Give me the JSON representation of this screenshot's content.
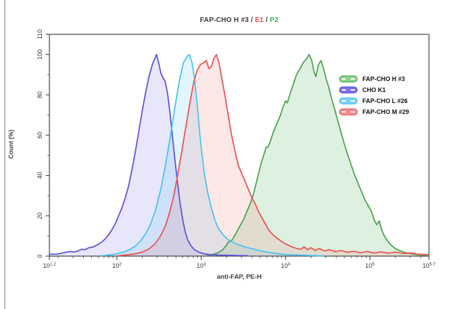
{
  "title": {
    "parts": [
      {
        "text": "FAP-CHO H #3 / ",
        "color": "#3a3a3a"
      },
      {
        "text": "E1",
        "color": "#e84b4b"
      },
      {
        "text": " / ",
        "color": "#3a3a3a"
      },
      {
        "text": "P2",
        "color": "#3bae5a"
      }
    ]
  },
  "axes": {
    "x": {
      "label": "anti-FAP, PE-H",
      "scale": "log10",
      "min_exp": 1.2,
      "max_exp": 5.7,
      "major_ticks": [
        {
          "exp": 1.2,
          "label": "1.2"
        },
        {
          "exp": 2,
          "label": "2"
        },
        {
          "exp": 3,
          "label": "3"
        },
        {
          "exp": 4,
          "label": "4"
        },
        {
          "exp": 5,
          "label": "5"
        },
        {
          "exp": 5.7,
          "label": "5.7"
        }
      ]
    },
    "y": {
      "label": "Count (%)",
      "min": 0,
      "max": 110,
      "major_ticks": [
        0,
        20,
        40,
        60,
        80,
        100,
        110
      ],
      "minor_ticks": [
        10,
        30,
        50,
        70,
        90
      ]
    }
  },
  "chart_data": {
    "type": "area",
    "subtype": "flow-cytometry-histogram-overlay",
    "title": "FAP-CHO H #3 / E1 / P2",
    "xlabel": "anti-FAP, PE-H",
    "ylabel": "Count (%)",
    "x_scale": "log10",
    "x_range_exp": [
      1.2,
      5.7
    ],
    "ylim": [
      0,
      110
    ],
    "grid": false,
    "legend_position": "right-inside",
    "series": [
      {
        "name": "FAP-CHO H #3",
        "stroke": "#4aa551",
        "fill": "rgba(106,190,114,0.22)",
        "swatch_fill": "#8fd08f",
        "points": [
          [
            3.06,
            0.2
          ],
          [
            3.13,
            0.7
          ],
          [
            3.19,
            1.5
          ],
          [
            3.25,
            3
          ],
          [
            3.3,
            5.5
          ],
          [
            3.33,
            7.5
          ],
          [
            3.35,
            7.2
          ],
          [
            3.38,
            9
          ],
          [
            3.42,
            12
          ],
          [
            3.46,
            15
          ],
          [
            3.5,
            18
          ],
          [
            3.53,
            21
          ],
          [
            3.56,
            24
          ],
          [
            3.59,
            27
          ],
          [
            3.62,
            31
          ],
          [
            3.65,
            36
          ],
          [
            3.68,
            41
          ],
          [
            3.71,
            46
          ],
          [
            3.74,
            50
          ],
          [
            3.77,
            54
          ],
          [
            3.79,
            54
          ],
          [
            3.82,
            57
          ],
          [
            3.85,
            61
          ],
          [
            3.88,
            64
          ],
          [
            3.91,
            67
          ],
          [
            3.94,
            70
          ],
          [
            3.97,
            74
          ],
          [
            4.0,
            77
          ],
          [
            4.02,
            76
          ],
          [
            4.05,
            80
          ],
          [
            4.09,
            85
          ],
          [
            4.13,
            90
          ],
          [
            4.17,
            93
          ],
          [
            4.21,
            96
          ],
          [
            4.25,
            98
          ],
          [
            4.28,
            100
          ],
          [
            4.31,
            97
          ],
          [
            4.34,
            91
          ],
          [
            4.36,
            89
          ],
          [
            4.39,
            95
          ],
          [
            4.42,
            97
          ],
          [
            4.45,
            93
          ],
          [
            4.48,
            88
          ],
          [
            4.51,
            84
          ],
          [
            4.54,
            79
          ],
          [
            4.58,
            73
          ],
          [
            4.62,
            67
          ],
          [
            4.66,
            61
          ],
          [
            4.7,
            55
          ],
          [
            4.74,
            50
          ],
          [
            4.78,
            45
          ],
          [
            4.82,
            40
          ],
          [
            4.86,
            36
          ],
          [
            4.9,
            32
          ],
          [
            4.94,
            28
          ],
          [
            4.98,
            25
          ],
          [
            5.02,
            22
          ],
          [
            5.05,
            18
          ],
          [
            5.08,
            15.5
          ],
          [
            5.11,
            17.5
          ],
          [
            5.14,
            13
          ],
          [
            5.17,
            10
          ],
          [
            5.21,
            7.5
          ],
          [
            5.25,
            5.5
          ],
          [
            5.3,
            3.8
          ],
          [
            5.36,
            2.6
          ],
          [
            5.42,
            1.8
          ],
          [
            5.49,
            1.2
          ],
          [
            5.56,
            0.8
          ],
          [
            5.63,
            0.5
          ],
          [
            5.7,
            0.3
          ]
        ]
      },
      {
        "name": "CHO K1",
        "stroke": "#5b55dd",
        "fill": "rgba(110,100,230,0.16)",
        "swatch_fill": "#7b70e8",
        "points": [
          [
            1.2,
            1
          ],
          [
            1.28,
            1
          ],
          [
            1.34,
            1.4
          ],
          [
            1.4,
            2
          ],
          [
            1.45,
            2.3
          ],
          [
            1.49,
            2
          ],
          [
            1.54,
            2.6
          ],
          [
            1.58,
            3.4
          ],
          [
            1.62,
            3.2
          ],
          [
            1.67,
            4.2
          ],
          [
            1.72,
            4.6
          ],
          [
            1.77,
            5.6
          ],
          [
            1.82,
            7
          ],
          [
            1.86,
            8.5
          ],
          [
            1.9,
            10.5
          ],
          [
            1.94,
            13
          ],
          [
            1.98,
            16
          ],
          [
            2.02,
            20
          ],
          [
            2.06,
            24
          ],
          [
            2.1,
            29
          ],
          [
            2.14,
            35
          ],
          [
            2.18,
            43
          ],
          [
            2.22,
            52
          ],
          [
            2.26,
            62
          ],
          [
            2.3,
            72
          ],
          [
            2.34,
            81
          ],
          [
            2.38,
            89
          ],
          [
            2.42,
            95
          ],
          [
            2.45,
            98
          ],
          [
            2.47,
            100
          ],
          [
            2.5,
            95
          ],
          [
            2.52,
            91
          ],
          [
            2.55,
            88
          ],
          [
            2.57,
            87
          ],
          [
            2.6,
            81
          ],
          [
            2.63,
            71
          ],
          [
            2.66,
            59
          ],
          [
            2.69,
            47
          ],
          [
            2.72,
            36
          ],
          [
            2.75,
            26
          ],
          [
            2.78,
            18
          ],
          [
            2.81,
            12
          ],
          [
            2.84,
            8
          ],
          [
            2.88,
            5
          ],
          [
            2.92,
            3.2
          ],
          [
            2.97,
            2
          ],
          [
            3.03,
            1.2
          ],
          [
            3.1,
            0.8
          ],
          [
            3.2,
            0.5
          ],
          [
            3.32,
            0.4
          ],
          [
            3.45,
            0.3
          ],
          [
            3.55,
            0.2
          ]
        ]
      },
      {
        "name": "FAP-CHO L #26",
        "stroke": "#49c3f2",
        "fill": "rgba(110,205,245,0.20)",
        "swatch_fill": "#79d2f5",
        "points": [
          [
            1.82,
            0.2
          ],
          [
            1.92,
            0.6
          ],
          [
            2.0,
            1.2
          ],
          [
            2.08,
            2
          ],
          [
            2.15,
            3.2
          ],
          [
            2.22,
            5
          ],
          [
            2.28,
            7.5
          ],
          [
            2.34,
            11
          ],
          [
            2.4,
            16
          ],
          [
            2.46,
            23
          ],
          [
            2.52,
            33
          ],
          [
            2.58,
            46
          ],
          [
            2.64,
            61
          ],
          [
            2.7,
            77
          ],
          [
            2.75,
            89
          ],
          [
            2.79,
            96
          ],
          [
            2.83,
            99
          ],
          [
            2.86,
            100
          ],
          [
            2.89,
            96
          ],
          [
            2.92,
            88
          ],
          [
            2.95,
            76
          ],
          [
            2.98,
            62
          ],
          [
            3.01,
            50
          ],
          [
            3.04,
            40
          ],
          [
            3.08,
            31
          ],
          [
            3.12,
            24
          ],
          [
            3.16,
            18
          ],
          [
            3.2,
            14
          ],
          [
            3.25,
            11
          ],
          [
            3.3,
            8.8
          ],
          [
            3.36,
            7.2
          ],
          [
            3.42,
            6
          ],
          [
            3.49,
            5
          ],
          [
            3.56,
            4.1
          ],
          [
            3.63,
            3.4
          ],
          [
            3.7,
            2.7
          ],
          [
            3.77,
            2.1
          ],
          [
            3.84,
            1.6
          ],
          [
            3.91,
            1.2
          ],
          [
            3.98,
            0.9
          ],
          [
            4.06,
            0.7
          ],
          [
            4.14,
            0.5
          ],
          [
            4.24,
            0.4
          ],
          [
            4.35,
            0.2
          ],
          [
            4.45,
            0.1
          ]
        ]
      },
      {
        "name": "FAP-CHO M #29",
        "stroke": "#f05252",
        "fill": "rgba(245,110,110,0.16)",
        "swatch_fill": "#f58a8a",
        "points": [
          [
            2.02,
            0.2
          ],
          [
            2.12,
            0.6
          ],
          [
            2.22,
            1.2
          ],
          [
            2.3,
            2
          ],
          [
            2.38,
            3.5
          ],
          [
            2.45,
            6
          ],
          [
            2.51,
            9.5
          ],
          [
            2.57,
            14.5
          ],
          [
            2.62,
            21
          ],
          [
            2.67,
            29
          ],
          [
            2.72,
            40
          ],
          [
            2.77,
            52
          ],
          [
            2.82,
            65
          ],
          [
            2.87,
            77
          ],
          [
            2.91,
            86
          ],
          [
            2.95,
            92
          ],
          [
            2.99,
            95
          ],
          [
            3.03,
            96
          ],
          [
            3.06,
            97
          ],
          [
            3.09,
            93
          ],
          [
            3.12,
            94
          ],
          [
            3.15,
            98
          ],
          [
            3.18,
            100
          ],
          [
            3.21,
            96
          ],
          [
            3.24,
            89
          ],
          [
            3.28,
            80
          ],
          [
            3.32,
            70
          ],
          [
            3.36,
            60
          ],
          [
            3.4,
            52
          ],
          [
            3.44,
            45
          ],
          [
            3.48,
            41
          ],
          [
            3.52,
            37
          ],
          [
            3.56,
            33
          ],
          [
            3.6,
            29
          ],
          [
            3.64,
            26
          ],
          [
            3.68,
            22
          ],
          [
            3.72,
            19
          ],
          [
            3.76,
            16
          ],
          [
            3.8,
            13
          ],
          [
            3.84,
            11
          ],
          [
            3.88,
            9.5
          ],
          [
            3.93,
            8
          ],
          [
            3.98,
            6.5
          ],
          [
            4.03,
            5.5
          ],
          [
            4.08,
            4.5
          ],
          [
            4.13,
            3.8
          ],
          [
            4.18,
            3.4
          ],
          [
            4.22,
            4.6
          ],
          [
            4.26,
            3.2
          ],
          [
            4.3,
            4.2
          ],
          [
            4.35,
            2.8
          ],
          [
            4.4,
            3.8
          ],
          [
            4.46,
            2.6
          ],
          [
            4.52,
            3.2
          ],
          [
            4.59,
            2.2
          ],
          [
            4.66,
            2.8
          ],
          [
            4.73,
            1.9
          ],
          [
            4.81,
            2.4
          ],
          [
            4.89,
            1.7
          ],
          [
            4.97,
            2.3
          ],
          [
            5.05,
            1.5
          ],
          [
            5.13,
            2.1
          ],
          [
            5.22,
            1.5
          ],
          [
            5.31,
            2
          ],
          [
            5.4,
            1.3
          ],
          [
            5.49,
            1.6
          ],
          [
            5.57,
            1
          ],
          [
            5.64,
            0.8
          ],
          [
            5.7,
            0.7
          ]
        ]
      }
    ]
  }
}
